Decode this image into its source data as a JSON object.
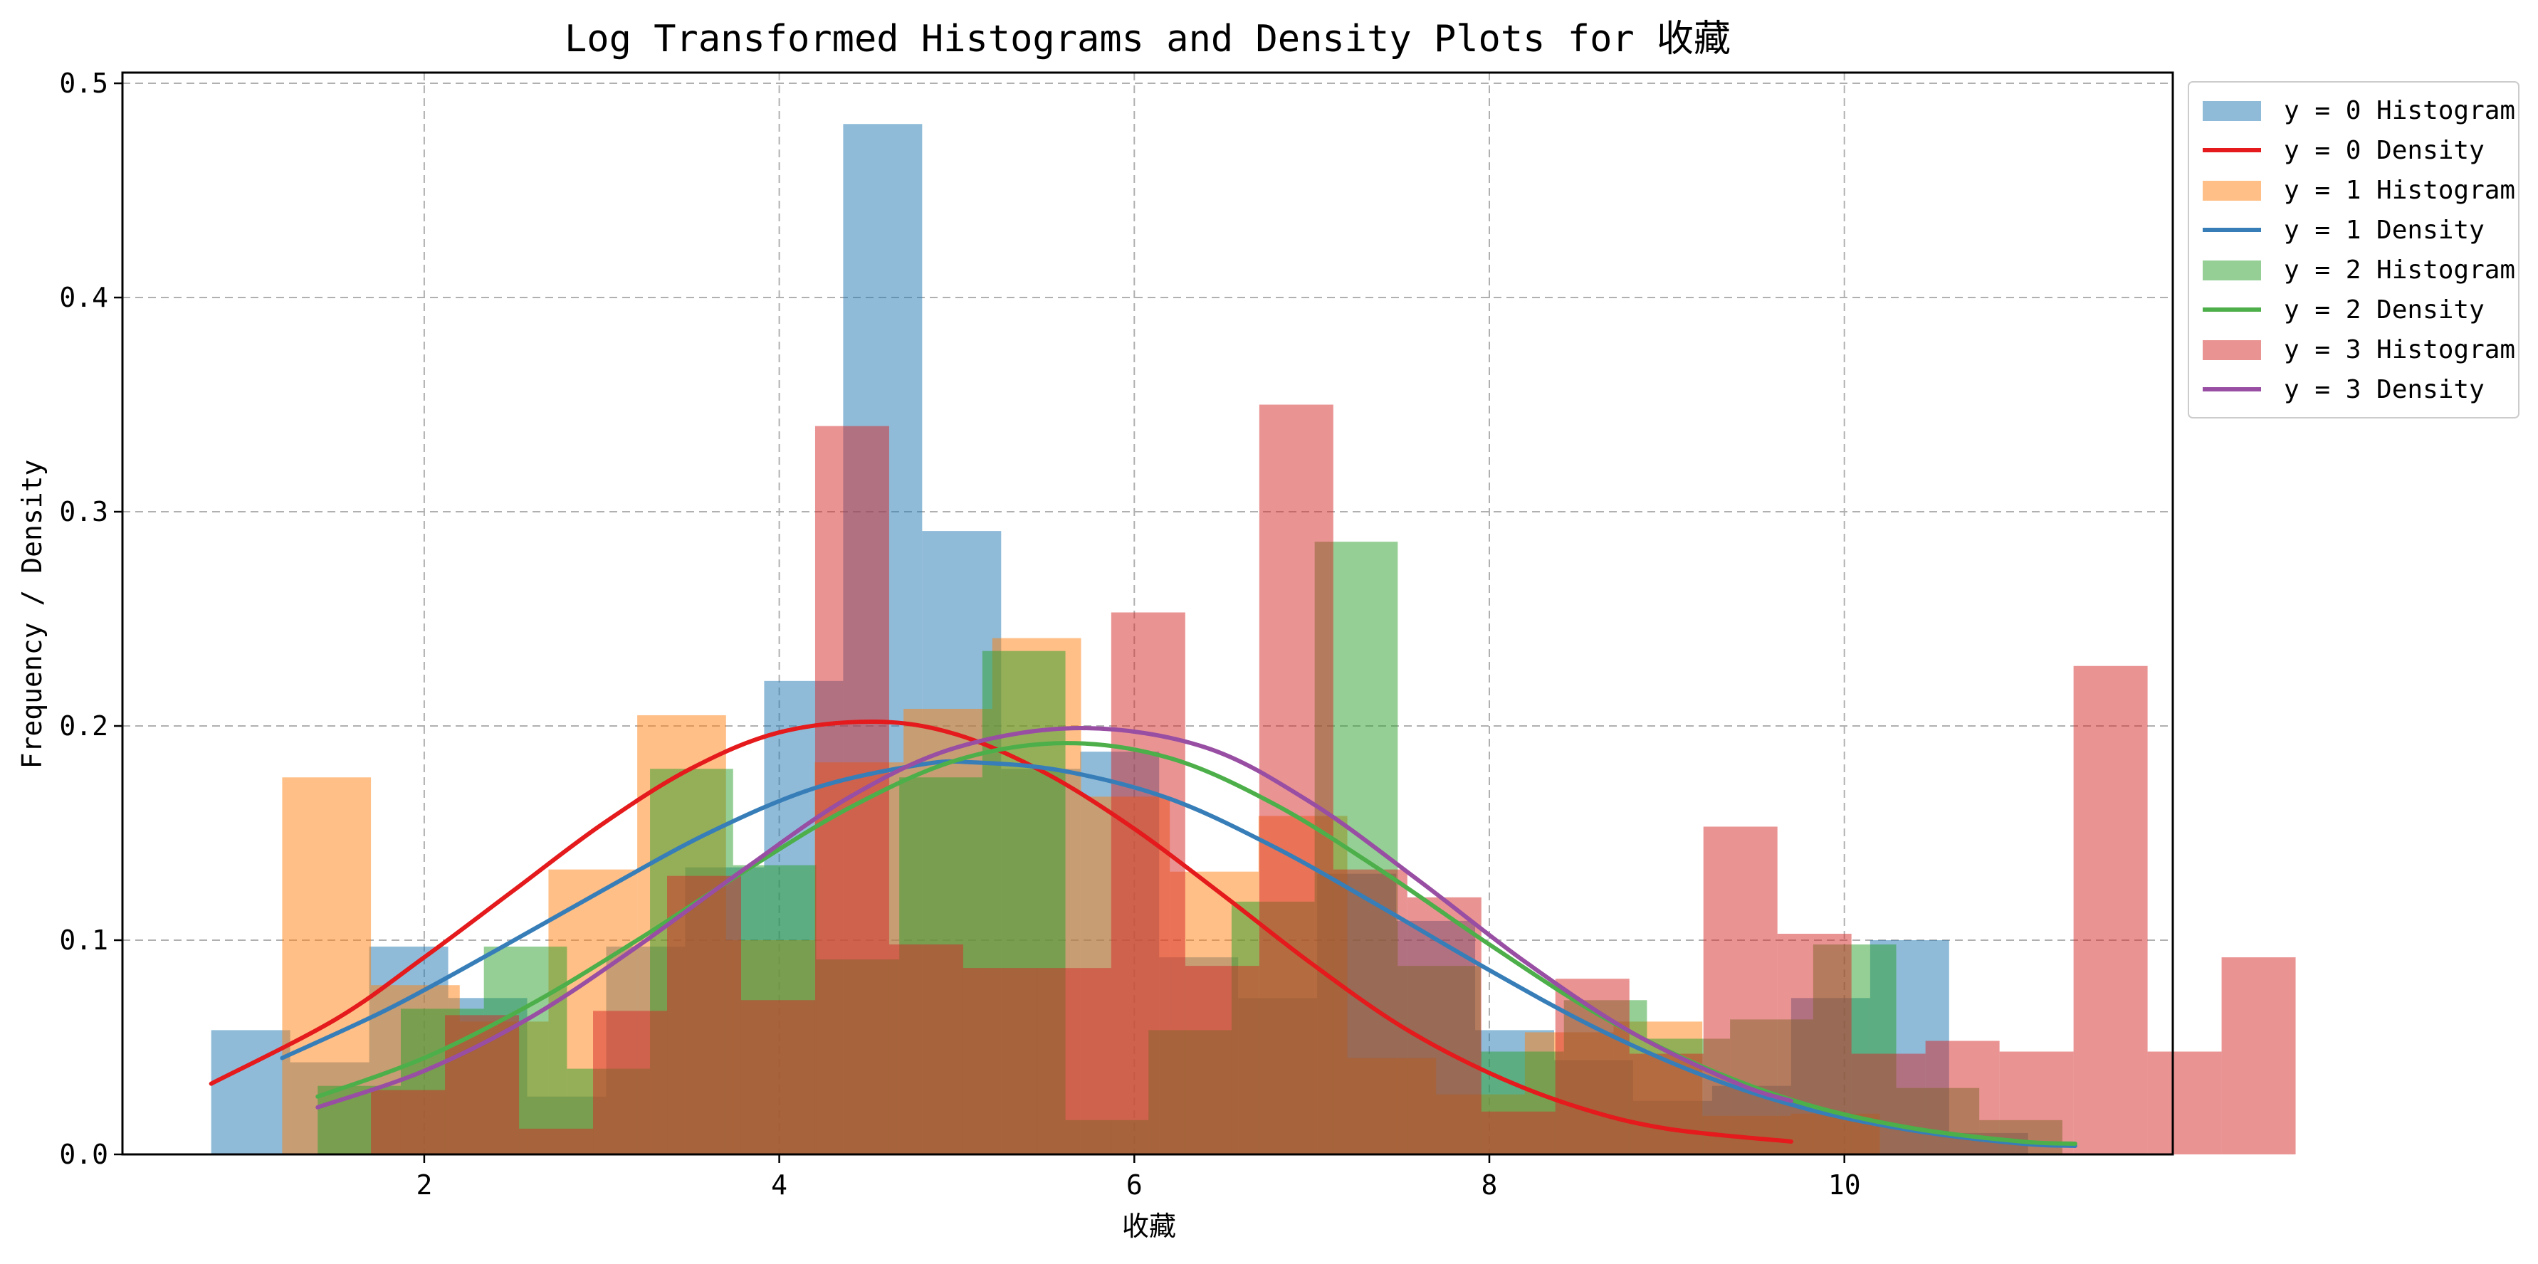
{
  "chart_data": {
    "type": "histogram+density",
    "title": "Log Transformed Histograms and Density Plots for 收藏",
    "xlabel": "收藏",
    "ylabel": "Frequency / Density",
    "xlim": [
      0.3,
      11.85
    ],
    "ylim": [
      0,
      0.505
    ],
    "xticks": [
      2,
      4,
      6,
      8,
      10
    ],
    "yticks": [
      0.0,
      0.1,
      0.2,
      0.3,
      0.4,
      0.5
    ],
    "grid": true,
    "legend_position": "outside-top-right",
    "colors": {
      "hist": [
        "#1f77b4",
        "#ff7f0e",
        "#2ca02c",
        "#d62728"
      ],
      "density": [
        "#e41a1c",
        "#377eb8",
        "#4daf4a",
        "#984ea3"
      ]
    },
    "legend": [
      "y = 0 Histogram",
      "y = 0 Density",
      "y = 1 Histogram",
      "y = 1 Density",
      "y = 2 Histogram",
      "y = 2 Density",
      "y = 3 Histogram",
      "y = 3 Density"
    ],
    "series": [
      {
        "name": "y = 0",
        "hist_x0": 0.8,
        "hist_bin": 0.445,
        "hist_values": [
          0.058,
          0.043,
          0.097,
          0.073,
          0.027,
          0.097,
          0.134,
          0.221,
          0.481,
          0.291,
          0.18,
          0.188,
          0.092,
          0.073,
          0.131,
          0.109,
          0.058,
          0.044,
          0.025,
          0.032,
          0.073,
          0.1,
          0.01
        ],
        "density_x": [
          0.8,
          1.5,
          2.0,
          2.5,
          3.0,
          3.5,
          4.0,
          4.54,
          5.0,
          5.5,
          6.0,
          6.5,
          7.0,
          7.5,
          8.0,
          8.5,
          9.0,
          9.7
        ],
        "density_y": [
          0.033,
          0.063,
          0.092,
          0.123,
          0.154,
          0.18,
          0.197,
          0.202,
          0.196,
          0.178,
          0.152,
          0.121,
          0.089,
          0.06,
          0.038,
          0.022,
          0.012,
          0.006
        ]
      },
      {
        "name": "y = 1",
        "hist_x0": 1.2,
        "hist_bin": 0.5,
        "hist_values": [
          0.176,
          0.079,
          0.062,
          0.133,
          0.205,
          0.1,
          0.183,
          0.208,
          0.241,
          0.167,
          0.132,
          0.158,
          0.045,
          0.028,
          0.057,
          0.062,
          0.018,
          0.019,
          0.0,
          0.0
        ],
        "density_x": [
          1.2,
          1.8,
          2.4,
          3.0,
          3.6,
          4.2,
          4.8,
          5.1,
          5.6,
          6.2,
          6.8,
          7.4,
          8.0,
          8.6,
          9.2,
          9.8,
          10.4,
          11.0,
          11.3
        ],
        "density_y": [
          0.045,
          0.068,
          0.095,
          0.123,
          0.15,
          0.171,
          0.182,
          0.183,
          0.179,
          0.166,
          0.143,
          0.115,
          0.086,
          0.059,
          0.037,
          0.021,
          0.011,
          0.005,
          0.004
        ]
      },
      {
        "name": "y = 2",
        "hist_x0": 1.4,
        "hist_bin": 0.468,
        "hist_values": [
          0.032,
          0.068,
          0.097,
          0.04,
          0.18,
          0.135,
          0.091,
          0.176,
          0.235,
          0.016,
          0.058,
          0.118,
          0.286,
          0.088,
          0.048,
          0.072,
          0.054,
          0.063,
          0.098,
          0.031,
          0.016,
          0.0,
          0.0,
          0.0,
          0.0,
          0.0,
          0.0,
          0.0,
          0.0,
          0.0
        ],
        "density_x": [
          1.4,
          2.0,
          2.6,
          3.2,
          3.8,
          4.4,
          5.0,
          5.6,
          6.2,
          6.8,
          7.4,
          8.0,
          8.6,
          9.2,
          9.8,
          10.4,
          11.0,
          11.3
        ],
        "density_y": [
          0.027,
          0.045,
          0.07,
          0.1,
          0.132,
          0.162,
          0.184,
          0.192,
          0.185,
          0.163,
          0.132,
          0.098,
          0.066,
          0.041,
          0.023,
          0.012,
          0.006,
          0.005
        ]
      },
      {
        "name": "y = 3",
        "hist_x0": 1.7,
        "hist_bin": 0.417,
        "hist_values": [
          0.03,
          0.065,
          0.012,
          0.067,
          0.13,
          0.072,
          0.34,
          0.098,
          0.087,
          0.087,
          0.253,
          0.088,
          0.35,
          0.133,
          0.12,
          0.02,
          0.082,
          0.047,
          0.153,
          0.103,
          0.047,
          0.053,
          0.048,
          0.228,
          0.048,
          0.092
        ],
        "density_x": [
          1.4,
          2.0,
          2.6,
          3.2,
          3.8,
          4.4,
          5.0,
          5.7,
          6.4,
          7.0,
          7.6,
          8.2,
          8.8,
          9.4,
          9.7
        ],
        "density_y": [
          0.022,
          0.039,
          0.064,
          0.097,
          0.133,
          0.167,
          0.19,
          0.199,
          0.19,
          0.164,
          0.128,
          0.09,
          0.057,
          0.033,
          0.025
        ]
      }
    ]
  }
}
